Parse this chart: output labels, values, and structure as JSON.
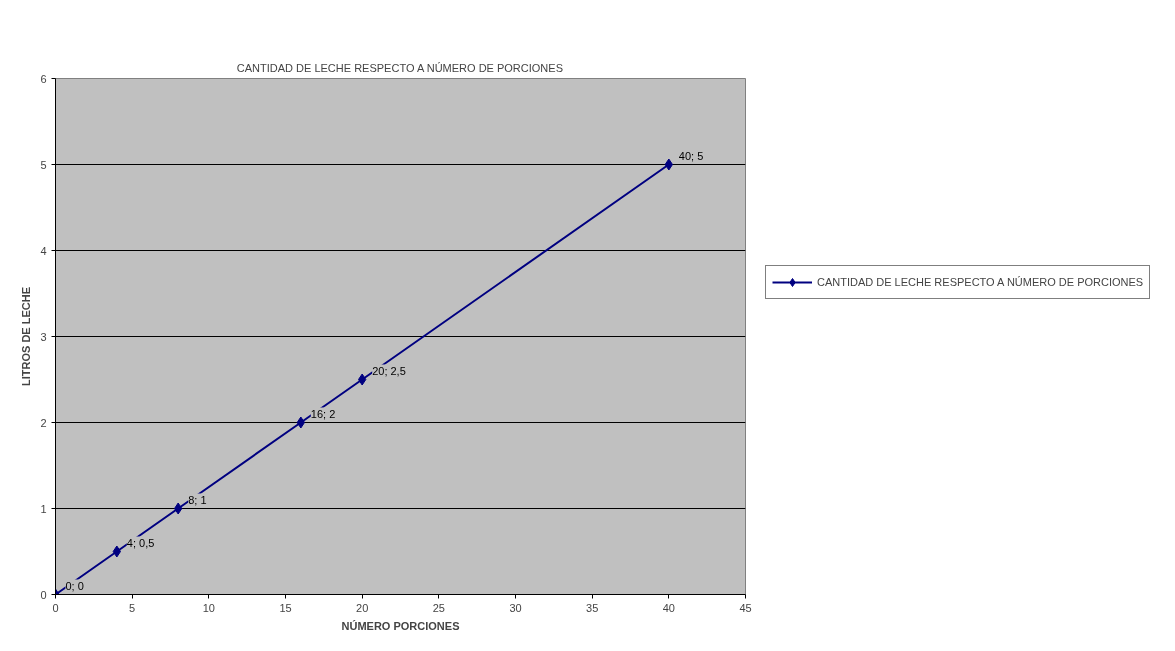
{
  "chart_data": {
    "type": "line",
    "title": "CANTIDAD DE LECHE RESPECTO A NÚMERO DE PORCIONES",
    "xlabel": "NÚMERO PORCIONES",
    "ylabel": "LITROS DE LECHE",
    "x": [
      0,
      4,
      8,
      16,
      20,
      40
    ],
    "series": [
      {
        "name": "CANTIDAD DE LECHE RESPECTO A NÚMERO DE PORCIONES",
        "color": "#000080",
        "values": [
          0,
          0.5,
          1,
          2,
          2.5,
          5
        ],
        "value_labels": [
          "0; 0",
          "4; 0,5",
          "8; 1",
          "16; 2",
          "20; 2,5",
          "40; 5"
        ]
      }
    ],
    "xlim": [
      0,
      45
    ],
    "xticks": [
      0,
      5,
      10,
      15,
      20,
      25,
      30,
      35,
      40,
      45
    ],
    "ylim": [
      0,
      6
    ],
    "yticks": [
      0,
      1,
      2,
      3,
      4,
      5,
      6
    ],
    "grid": "y",
    "legend": "right",
    "marker": "diamond",
    "line_style": "solid"
  }
}
